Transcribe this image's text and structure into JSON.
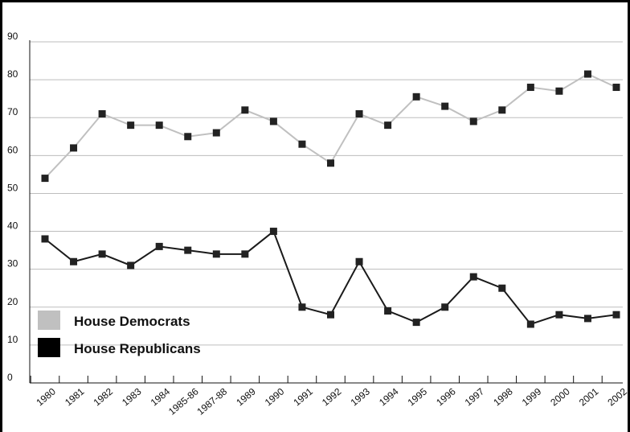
{
  "chart_data": {
    "type": "line",
    "title": "",
    "xlabel": "",
    "ylabel": "",
    "categories": [
      "1980",
      "1981",
      "1982",
      "1983",
      "1984",
      "1985-86",
      "1987-88",
      "1989",
      "1990",
      "1991",
      "1992",
      "1993",
      "1994",
      "1995",
      "1996",
      "1997",
      "1998",
      "1999",
      "2000",
      "2001",
      "2002"
    ],
    "ylim": [
      0,
      90
    ],
    "yticks": [
      0,
      10,
      20,
      30,
      40,
      50,
      60,
      70,
      80,
      90
    ],
    "grid": true,
    "legend_position": "bottom-left",
    "series": [
      {
        "name": "House Democrats",
        "color": "#c0c0c0",
        "values": [
          54,
          62,
          71,
          68,
          68,
          65,
          66,
          72,
          69,
          63,
          58,
          71,
          68,
          75.5,
          73,
          69,
          72,
          78,
          77,
          81.5,
          78
        ]
      },
      {
        "name": "House Republicans",
        "color": "#1a1a1a",
        "values": [
          38,
          32,
          34,
          31,
          36,
          35,
          34,
          34,
          40,
          20,
          18,
          32,
          19,
          16,
          20,
          28,
          25,
          15.5,
          18,
          17,
          18
        ]
      }
    ]
  }
}
